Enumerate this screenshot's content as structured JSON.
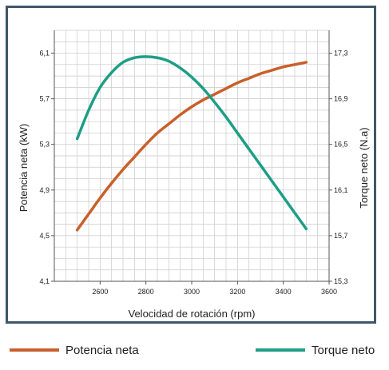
{
  "chart_data": {
    "type": "line",
    "xlabel": "Velocidad de rotación (rpm)",
    "ylabel": "Potencia neta (kW)",
    "y2label": "Torque neto (N.a)",
    "xlim": [
      2400,
      3600
    ],
    "ylim": [
      4.1,
      6.3
    ],
    "y2lim": [
      15.3,
      17.5
    ],
    "x_ticks": [
      "2600",
      "2800",
      "3000",
      "3200",
      "3400",
      "3600"
    ],
    "y_ticks": [
      "4,1",
      "4,5",
      "4,9",
      "5,3",
      "5,7",
      "6,1"
    ],
    "y2_ticks": [
      "15,3",
      "15,7",
      "16,1",
      "16,5",
      "16,9",
      "17,3"
    ],
    "grid": true,
    "series": [
      {
        "name": "Potencia neta",
        "axis": "left",
        "color": "#c8602c",
        "x": [
          2500,
          2550,
          2600,
          2650,
          2700,
          2750,
          2800,
          2850,
          2900,
          2950,
          3000,
          3050,
          3100,
          3150,
          3200,
          3250,
          3300,
          3350,
          3400,
          3450,
          3500
        ],
        "values": [
          4.55,
          4.69,
          4.83,
          4.96,
          5.08,
          5.19,
          5.3,
          5.4,
          5.48,
          5.56,
          5.63,
          5.69,
          5.74,
          5.79,
          5.84,
          5.88,
          5.92,
          5.95,
          5.98,
          6.0,
          6.02
        ]
      },
      {
        "name": "Torque neto",
        "axis": "right",
        "color": "#1e9e86",
        "x": [
          2500,
          2550,
          2600,
          2650,
          2700,
          2750,
          2800,
          2850,
          2900,
          2950,
          3000,
          3050,
          3100,
          3150,
          3200,
          3250,
          3300,
          3350,
          3400,
          3450,
          3500
        ],
        "values": [
          16.55,
          16.8,
          17.0,
          17.13,
          17.22,
          17.26,
          17.27,
          17.26,
          17.23,
          17.17,
          17.09,
          16.99,
          16.87,
          16.74,
          16.6,
          16.46,
          16.32,
          16.18,
          16.04,
          15.9,
          15.76
        ]
      }
    ],
    "legend": "bottom"
  }
}
